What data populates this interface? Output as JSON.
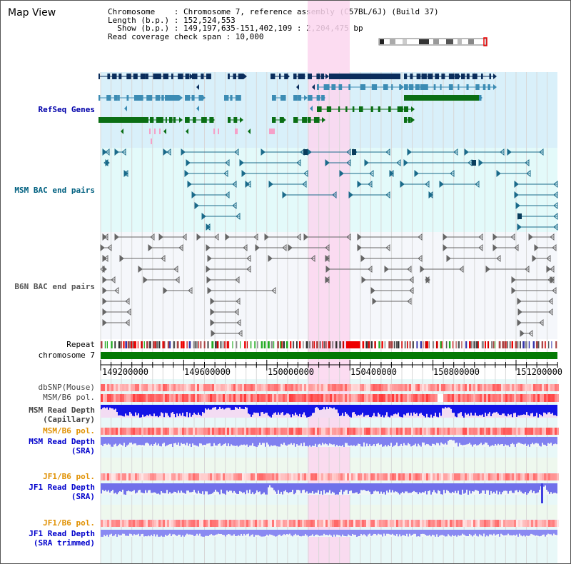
{
  "title": "Map View",
  "info": {
    "line1": "Chromosome    : Chromosome 7, reference assembly (C57BL/6J) (Build 37)",
    "line2": "Length (b.p.) : 152,524,553",
    "line3": "  Show (b.p.) : 149,197,635-151,402,109 : 2,204,475 bp",
    "line4": "Read coverage check span : 10,000"
  },
  "tracks": {
    "refseq": "RefSeq Genes",
    "msm_bac": "MSM BAC end pairs",
    "b6n_bac": "B6N BAC end pairs",
    "repeat": "Repeat",
    "chromosome": "chromosome 7",
    "dbsnp": "dbSNP(Mouse)",
    "msm_pol1": "MSM/B6 pol.",
    "msm_depth_cap": "MSM Read Depth\n(Capillary)",
    "msm_pol2": "MSM/B6 pol.",
    "msm_depth_sra": "MSM Read Depth\n(SRA)",
    "jf1_pol1": "JF1/B6 pol.",
    "jf1_depth_sra": "JF1 Read Depth\n(SRA)",
    "jf1_pol2": "JF1/B6 pol.",
    "jf1_depth_trim": "JF1 Read Depth\n(SRA trimmed)"
  },
  "axis_ticks": [
    "149200000",
    "149600000",
    "150000000",
    "150400000",
    "150800000",
    "151200000"
  ],
  "colors": {
    "refseq_bg": "#d9f0fa",
    "msm_bg": "#e3fafa",
    "b6n_bg": "#f5f7fb",
    "highlight": "#fbd6ef",
    "chromosome": "#047a04",
    "msm_label": "#006080",
    "refseq_label": "#0000aa",
    "b6n_label": "#555555",
    "orange_label": "#e09000",
    "blue_label": "#0000cc",
    "gray_label": "#444444"
  }
}
